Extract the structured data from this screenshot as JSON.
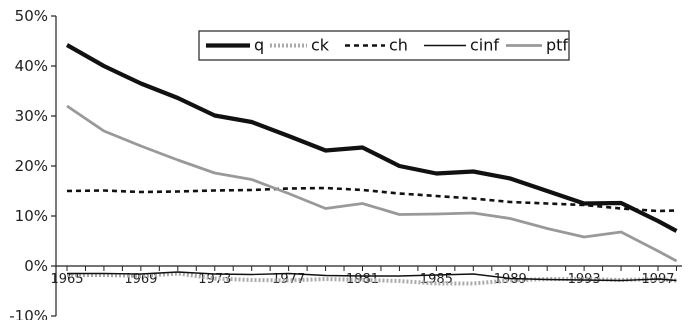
{
  "chart_data": {
    "type": "line",
    "title": "",
    "xlabel": "",
    "ylabel": "",
    "x": [
      1965,
      1967,
      1969,
      1971,
      1973,
      1975,
      1977,
      1979,
      1981,
      1983,
      1985,
      1987,
      1989,
      1991,
      1993,
      1995,
      1997,
      1998
    ],
    "xticks": [
      "1965",
      "1969",
      "1973",
      "1977",
      "1981",
      "1985",
      "1989",
      "1993",
      "1997"
    ],
    "yticks": [
      "50%",
      "40%",
      "30%",
      "20%",
      "10%",
      "0%",
      "-10%"
    ],
    "ylim": [
      -10,
      50
    ],
    "xlim": [
      1965,
      1998.3
    ],
    "grid": false,
    "legend": "top-center",
    "series": [
      {
        "name": "q",
        "color": "#111111",
        "style": "solid-thick",
        "values": [
          44.2,
          40.0,
          36.5,
          33.6,
          30.1,
          28.8,
          26.0,
          23.1,
          23.7,
          20.0,
          18.5,
          18.9,
          17.5,
          15.0,
          12.5,
          12.6,
          9.0,
          7.0
        ]
      },
      {
        "name": "ck",
        "color": "#aaaaaa",
        "style": "dotted",
        "values": [
          -1.8,
          -1.8,
          -2.0,
          -1.5,
          -2.5,
          -2.8,
          -2.9,
          -2.6,
          -2.8,
          -3.0,
          -3.5,
          -3.5,
          -2.9,
          -2.6,
          -2.6,
          -2.8,
          -2.6,
          -2.9
        ]
      },
      {
        "name": "ch",
        "color": "#111111",
        "style": "dashed",
        "values": [
          15.0,
          15.1,
          14.8,
          14.9,
          15.1,
          15.2,
          15.5,
          15.6,
          15.2,
          14.5,
          14.0,
          13.5,
          12.8,
          12.5,
          12.2,
          11.5,
          11.0,
          11.1
        ]
      },
      {
        "name": "cinf",
        "color": "#111111",
        "style": "solid-thin",
        "values": [
          -1.5,
          -1.5,
          -1.6,
          -1.2,
          -1.6,
          -1.7,
          -1.5,
          -1.9,
          -2.0,
          -2.0,
          -1.8,
          -1.6,
          -2.5,
          -2.7,
          -2.8,
          -2.9,
          -2.6,
          -2.9
        ]
      },
      {
        "name": "ptf",
        "color": "#999999",
        "style": "solid-medium",
        "values": [
          32.0,
          27.0,
          24.0,
          21.2,
          18.6,
          17.3,
          14.5,
          11.5,
          12.5,
          10.3,
          10.4,
          10.6,
          9.5,
          7.5,
          5.8,
          6.8,
          3.0,
          1.0
        ]
      }
    ]
  }
}
